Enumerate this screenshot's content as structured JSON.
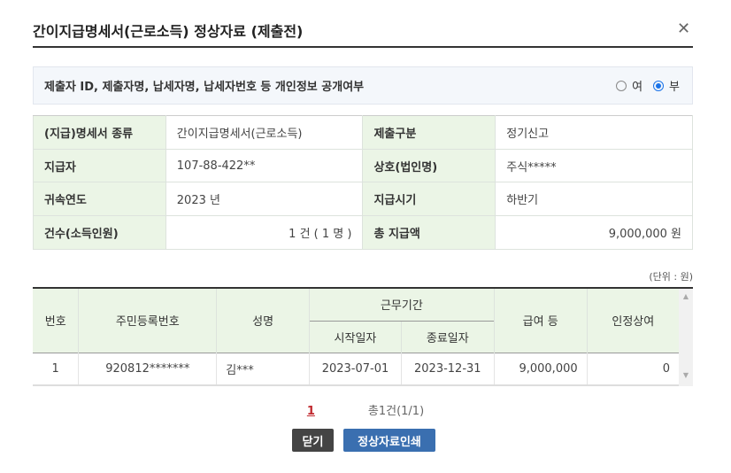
{
  "title": "간이지급명세서(근로소득) 정상자료 (제출전)",
  "close_icon": "close-icon",
  "privacy": {
    "question": "제출자 ID, 제출자명, 납세자명, 납세자번호 등 개인정보 공개여부",
    "options": [
      "여",
      "부"
    ],
    "selected": "부"
  },
  "info": [
    {
      "label1": "(지급)명세서 종류",
      "value1": "간이지급명세서(근로소득)",
      "label2": "제출구분",
      "value2": "정기신고"
    },
    {
      "label1": "지급자",
      "value1": "107-88-422**",
      "label2": "상호(법인명)",
      "value2": "주식*****"
    },
    {
      "label1": "귀속연도",
      "value1": "2023 년",
      "label2": "지급시기",
      "value2": "하반기"
    },
    {
      "label1": "건수(소득인원)",
      "value1": "1 건 ( 1 명 )",
      "label2": "총 지급액",
      "value2": "9,000,000 원"
    }
  ],
  "unit": "(단위 : 원)",
  "grid": {
    "headers": {
      "no": "번호",
      "rrn": "주민등록번호",
      "name": "성명",
      "period": "근무기간",
      "start": "시작일자",
      "end": "종료일자",
      "pay": "급여 등",
      "bonus": "인정상여"
    },
    "rows": [
      {
        "no": "1",
        "rrn": "920812*******",
        "name": "김***",
        "start": "2023-07-01",
        "end": "2023-12-31",
        "pay": "9,000,000",
        "bonus": "0"
      }
    ]
  },
  "pager": {
    "page": "1",
    "total": "총1건(1/1)"
  },
  "buttons": {
    "close": "닫기",
    "print": "정상자료인쇄"
  }
}
